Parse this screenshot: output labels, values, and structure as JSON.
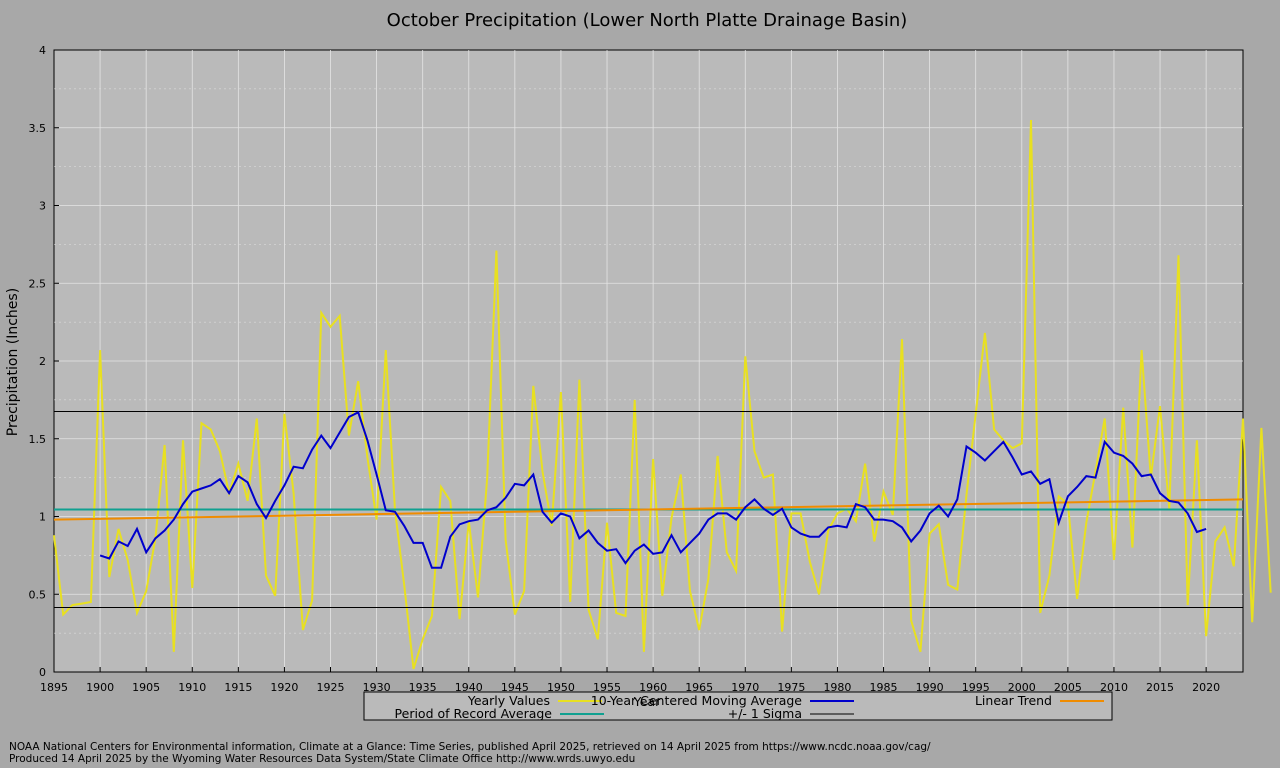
{
  "chart_data": {
    "type": "line",
    "title": "October Precipitation (Lower North Platte Drainage Basin)",
    "xlabel": "Year",
    "ylabel": "Precipitation (Inches)",
    "xlim": [
      1895,
      2024
    ],
    "ylim": [
      0,
      4
    ],
    "x_ticks": [
      1895,
      1900,
      1905,
      1910,
      1915,
      1920,
      1925,
      1930,
      1935,
      1940,
      1945,
      1950,
      1955,
      1960,
      1965,
      1970,
      1975,
      1980,
      1985,
      1990,
      1995,
      2000,
      2005,
      2010,
      2015,
      2020
    ],
    "y_ticks": [
      0,
      0.5,
      1,
      1.5,
      2,
      2.5,
      3,
      3.5,
      4
    ],
    "grid": true,
    "legend_position": "bottom-center",
    "series": [
      {
        "name": "Yearly Values",
        "color": "#e8e020",
        "x_start": 1895,
        "values": [
          0.88,
          0.37,
          0.43,
          0.44,
          0.45,
          2.07,
          0.61,
          0.92,
          0.72,
          0.38,
          0.52,
          0.86,
          1.46,
          0.13,
          1.49,
          0.54,
          1.6,
          1.56,
          1.42,
          1.15,
          1.34,
          1.1,
          1.63,
          0.62,
          0.49,
          1.66,
          1.15,
          0.27,
          0.46,
          2.31,
          2.22,
          2.29,
          1.52,
          1.87,
          1.38,
          0.98,
          2.07,
          1.04,
          0.56,
          0.02,
          0.21,
          0.36,
          1.19,
          1.1,
          0.34,
          0.97,
          0.48,
          1.25,
          2.71,
          0.85,
          0.37,
          0.52,
          1.84,
          1.29,
          0.94,
          1.8,
          0.45,
          1.88,
          0.4,
          0.21,
          0.96,
          0.38,
          0.36,
          1.75,
          0.13,
          1.37,
          0.49,
          0.99,
          1.27,
          0.52,
          0.27,
          0.6,
          1.39,
          0.77,
          0.65,
          2.03,
          1.42,
          1.25,
          1.27,
          0.26,
          1.02,
          1.02,
          0.71,
          0.5,
          0.91,
          1.02,
          1.05,
          0.97,
          1.34,
          0.84,
          1.16,
          1.01,
          2.14,
          0.33,
          0.13,
          0.89,
          0.95,
          0.56,
          0.53,
          1.14,
          1.66,
          2.18,
          1.56,
          1.49,
          1.44,
          1.47,
          3.55,
          0.38,
          0.62,
          1.13,
          1.08,
          0.47,
          0.96,
          1.29,
          1.63,
          0.72,
          1.7,
          0.8,
          2.07,
          1.25,
          1.71,
          1.05,
          2.68,
          0.43,
          1.49,
          0.23,
          0.84,
          0.93,
          0.68,
          1.63,
          0.32,
          1.57,
          0.51
        ]
      },
      {
        "name": "10-Year Centered Moving Average",
        "color": "#0000cc",
        "x_start": 1900,
        "values": [
          0.75,
          0.73,
          0.84,
          0.81,
          0.92,
          0.77,
          0.86,
          0.91,
          0.98,
          1.08,
          1.16,
          1.18,
          1.2,
          1.24,
          1.15,
          1.26,
          1.22,
          1.08,
          0.99,
          1.1,
          1.2,
          1.32,
          1.31,
          1.43,
          1.52,
          1.44,
          1.54,
          1.64,
          1.67,
          1.49,
          1.27,
          1.04,
          1.03,
          0.94,
          0.83,
          0.83,
          0.67,
          0.67,
          0.87,
          0.95,
          0.97,
          0.98,
          1.04,
          1.06,
          1.12,
          1.21,
          1.2,
          1.27,
          1.03,
          0.96,
          1.02,
          1.0,
          0.86,
          0.91,
          0.83,
          0.78,
          0.79,
          0.7,
          0.78,
          0.82,
          0.76,
          0.77,
          0.88,
          0.77,
          0.83,
          0.89,
          0.98,
          1.02,
          1.02,
          0.98,
          1.06,
          1.11,
          1.05,
          1.01,
          1.05,
          0.93,
          0.89,
          0.87,
          0.87,
          0.93,
          0.94,
          0.93,
          1.08,
          1.06,
          0.98,
          0.98,
          0.97,
          0.93,
          0.84,
          0.91,
          1.02,
          1.07,
          1.0,
          1.11,
          1.45,
          1.41,
          1.36,
          1.42,
          1.48,
          1.38,
          1.27,
          1.29,
          1.21,
          1.24,
          0.96,
          1.13,
          1.19,
          1.26,
          1.25,
          1.48,
          1.41,
          1.39,
          1.34,
          1.26,
          1.27,
          1.15,
          1.1,
          1.09,
          1.02,
          0.9,
          0.92
        ]
      },
      {
        "name": "Linear Trend",
        "color": "#f08c00",
        "x": [
          1895,
          2024
        ],
        "y": [
          0.98,
          1.11
        ]
      },
      {
        "name": "Period of Record Average",
        "color": "#10a090",
        "x": [
          1895,
          2024
        ],
        "y": [
          1.045,
          1.045
        ]
      },
      {
        "name": "+/- 1 Sigma",
        "color": "#000000",
        "lower": 0.415,
        "upper": 1.675
      }
    ]
  },
  "footer": {
    "line1": "NOAA National Centers for Environmental information, Climate at a Glance: Time Series, published April 2025, retrieved on 14 April 2025 from https://www.ncdc.noaa.gov/cag/",
    "line2": "Produced 14 April 2025 by the Wyoming Water Resources Data System/State Climate Office http://www.wrds.uwyo.edu"
  }
}
